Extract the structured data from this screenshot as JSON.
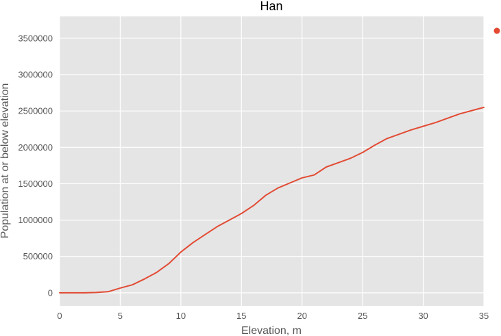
{
  "chart_data": {
    "type": "line",
    "title": "Han",
    "xlabel": "Elevation, m",
    "ylabel": "Population at or below elevation",
    "xlim": [
      0,
      35
    ],
    "ylim": [
      -180000,
      3800000
    ],
    "xticks": [
      0,
      5,
      10,
      15,
      20,
      25,
      30,
      35
    ],
    "yticks": [
      0,
      500000,
      1000000,
      1500000,
      2000000,
      2500000,
      3000000,
      3500000
    ],
    "grid": true,
    "legend": "top-right",
    "series": [
      {
        "color": "#E24A33",
        "x": [
          0,
          1,
          2,
          3,
          4,
          5,
          6,
          7,
          8,
          9,
          10,
          11,
          12,
          13,
          14,
          15,
          16,
          17,
          18,
          19,
          20,
          21,
          22,
          23,
          24,
          25,
          26,
          27,
          28,
          29,
          30,
          31,
          32,
          33,
          34,
          35
        ],
        "y": [
          0,
          0,
          0,
          5000,
          15000,
          65000,
          110000,
          190000,
          280000,
          400000,
          560000,
          690000,
          800000,
          910000,
          1000000,
          1090000,
          1200000,
          1340000,
          1440000,
          1510000,
          1580000,
          1620000,
          1730000,
          1790000,
          1850000,
          1930000,
          2030000,
          2120000,
          2180000,
          2240000,
          2290000,
          2340000,
          2400000,
          2460000,
          2505000,
          2550000
        ]
      }
    ]
  },
  "colors": {
    "plot_background": "#E5E5E5",
    "grid": "#FFFFFF",
    "series_line": "#E24A33"
  }
}
